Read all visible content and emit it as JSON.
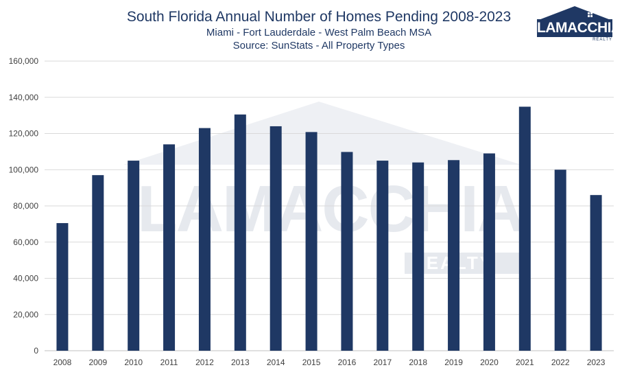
{
  "header": {
    "title": "South Florida Annual Number of Homes Pending 2008-2023",
    "subtitle": "Miami - Fort Lauderdale - West Palm Beach MSA",
    "source": "Source: SunStats - All Property Types"
  },
  "logo": {
    "brand": "LAMACCHIA",
    "tagline": "REALTY"
  },
  "watermark": {
    "brand": "LAMACCHIA",
    "tagline": "REALTY"
  },
  "colors": {
    "bar": "#1f3864",
    "grid": "#d9d9d9",
    "text": "#404040"
  },
  "chart_data": {
    "type": "bar",
    "title": "South Florida Annual Number of Homes Pending 2008-2023",
    "categories": [
      "2008",
      "2009",
      "2010",
      "2011",
      "2012",
      "2013",
      "2014",
      "2015",
      "2016",
      "2017",
      "2018",
      "2019",
      "2020",
      "2021",
      "2022",
      "2023"
    ],
    "values": [
      70500,
      97000,
      105000,
      114000,
      123000,
      130500,
      124000,
      120800,
      109800,
      105000,
      104000,
      105300,
      109000,
      134800,
      100000,
      86000
    ],
    "yticks": [
      "0",
      "20,000",
      "40,000",
      "60,000",
      "80,000",
      "100,000",
      "120,000",
      "140,000",
      "160,000"
    ],
    "ylim": [
      0,
      160000
    ],
    "grid": true,
    "legend": "none"
  }
}
